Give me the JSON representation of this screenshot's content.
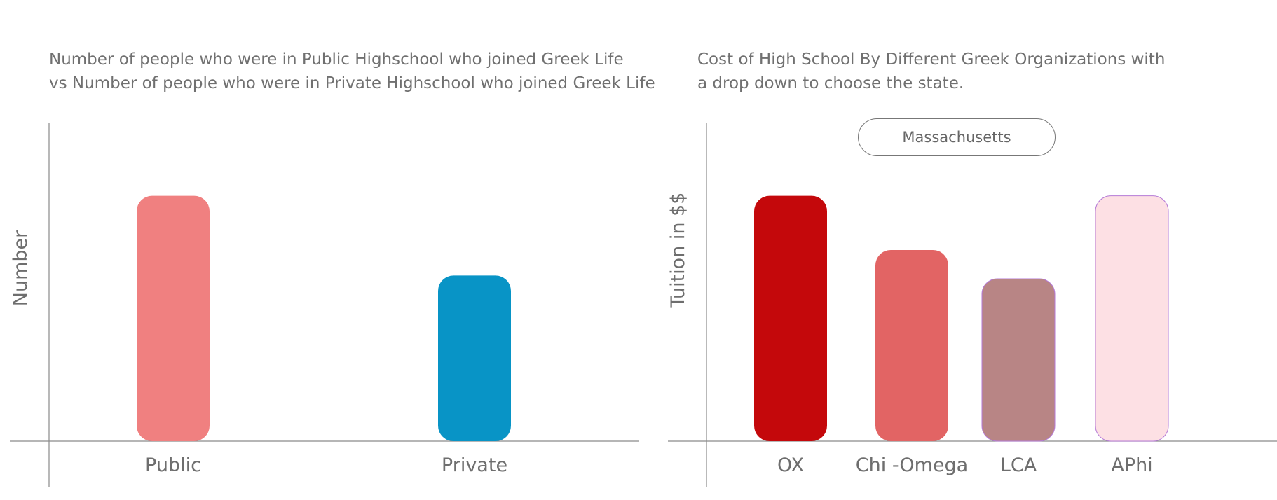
{
  "chart_data": [
    {
      "type": "bar",
      "title_lines": [
        "Number of people who were in Public Highschool who joined Greek Life",
        "vs Number of people who were in Private Highschool who joined Greek Life"
      ],
      "xlabel": "",
      "ylabel": "Number",
      "ylim": [
        0,
        100
      ],
      "categories": [
        "Public",
        "Private"
      ],
      "values": [
        77,
        52
      ],
      "colors": [
        "#f08080",
        "#0894c6"
      ],
      "grid": false
    },
    {
      "type": "bar",
      "title_lines": [
        "Cost of High School By Different Greek Organizations with",
        "a drop down to choose the state."
      ],
      "xlabel": "",
      "ylabel": "Tuition in $$",
      "ylim": [
        0,
        100
      ],
      "categories": [
        "OX",
        "Chi -Omega",
        "LCA",
        "APhi"
      ],
      "values": [
        77,
        60,
        51,
        77
      ],
      "colors": [
        "#c4080b",
        "#e26464",
        "#b88585",
        "#fde0e4"
      ],
      "grid": false,
      "dropdown": {
        "selected": "Massachusetts"
      }
    }
  ]
}
